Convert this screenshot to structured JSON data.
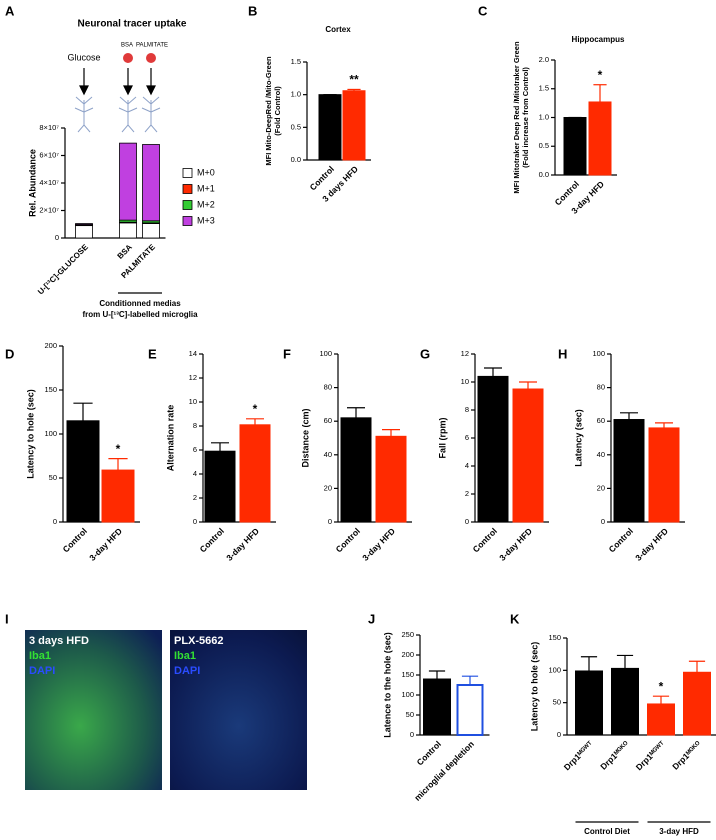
{
  "chart_data": [
    {
      "panel": "A",
      "type": "stacked_bar",
      "title": "Neuronal tracer uptake",
      "y_label": "Rel. Abundance",
      "categories": [
        "U-[¹³C]-GLUCOSE",
        "BSA",
        "PALMITATE"
      ],
      "series": [
        {
          "name": "M+0",
          "color": "#ffffff",
          "values": [
            9000000,
            11000000,
            10500000
          ]
        },
        {
          "name": "M+1",
          "color": "#ff2a00",
          "values": [
            500000,
            500000,
            500000
          ]
        },
        {
          "name": "M+2",
          "color": "#33cc33",
          "values": [
            300000,
            1500000,
            1500000
          ]
        },
        {
          "name": "M+3",
          "color": "#c040e0",
          "values": [
            700000,
            56000000,
            55500000
          ]
        }
      ],
      "ylim": [
        0,
        80000000
      ],
      "yticks": [
        0,
        {
          "value": 20000000,
          "label": "2×10⁷"
        },
        {
          "value": 40000000,
          "label": "4×10⁷"
        },
        {
          "value": 60000000,
          "label": "6×10⁷"
        },
        {
          "value": 80000000,
          "label": "8×10⁷"
        }
      ],
      "legend": "right",
      "annotations": [
        "Glucose",
        "BSA",
        "PALMITATE"
      ],
      "group_label": [
        "Conditionned medias",
        "from U-[¹³C]-labelled microglia"
      ]
    },
    {
      "panel": "B",
      "type": "bar",
      "title": "Cortex",
      "y_label": [
        "MFI Mito-DeepRed /Mito-Green",
        "(Fold Control)"
      ],
      "categories": [
        "Control",
        "3 days HFD"
      ],
      "values": [
        1.0,
        1.06
      ],
      "errors": [
        0,
        0.02
      ],
      "colors": [
        "#000000",
        "#ff2a00"
      ],
      "significance": [
        null,
        "**"
      ],
      "ylim": [
        0,
        1.5
      ],
      "yticks": [
        {
          "value": 0,
          "label": "0.0"
        },
        {
          "value": 0.5,
          "label": "0.5"
        },
        {
          "value": 1,
          "label": "1.0"
        },
        {
          "value": 1.5,
          "label": "1.5"
        }
      ]
    },
    {
      "panel": "C",
      "type": "bar",
      "title": "Hippocampus",
      "y_label": [
        "MFI Mitotraker Deep Red /Mitotraker Green",
        "(Fold increase from Control)"
      ],
      "categories": [
        "Control",
        "3-day HFD"
      ],
      "values": [
        1.0,
        1.27
      ],
      "errors": [
        0,
        0.3
      ],
      "colors": [
        "#000000",
        "#ff2a00"
      ],
      "significance": [
        null,
        "*"
      ],
      "ylim": [
        0,
        2
      ],
      "yticks": [
        {
          "value": 0,
          "label": "0.0"
        },
        {
          "value": 0.5,
          "label": "0.5"
        },
        {
          "value": 1,
          "label": "1.0"
        },
        {
          "value": 1.5,
          "label": "1.5"
        },
        {
          "value": 2,
          "label": "2.0"
        }
      ]
    },
    {
      "panel": "D",
      "type": "bar",
      "y_label": "Latency to hole (sec)",
      "categories": [
        "Control",
        "3-day HFD"
      ],
      "values": [
        115,
        59
      ],
      "errors": [
        20,
        13
      ],
      "colors": [
        "#000000",
        "#ff2a00"
      ],
      "significance": [
        null,
        "*"
      ],
      "ylim": [
        0,
        200
      ],
      "yticks": [
        0,
        50,
        100,
        150,
        200
      ]
    },
    {
      "panel": "E",
      "type": "bar",
      "y_label": "Alternation rate",
      "categories": [
        "Control",
        "3-day HFD"
      ],
      "values": [
        5.9,
        8.1
      ],
      "errors": [
        0.7,
        0.5
      ],
      "colors": [
        "#000000",
        "#ff2a00"
      ],
      "significance": [
        null,
        "*"
      ],
      "ylim": [
        0,
        14
      ],
      "yticks": [
        0,
        2,
        4,
        6,
        8,
        10,
        12,
        14
      ]
    },
    {
      "panel": "F",
      "type": "bar",
      "y_label": "Distance (cm)",
      "categories": [
        "Control",
        "3-day HFD"
      ],
      "values": [
        62,
        51
      ],
      "errors": [
        6,
        4
      ],
      "colors": [
        "#000000",
        "#ff2a00"
      ],
      "ylim": [
        0,
        100
      ],
      "yticks": [
        0,
        20,
        40,
        60,
        80,
        100
      ]
    },
    {
      "panel": "G",
      "type": "bar",
      "y_label": "Fall (rpm)",
      "categories": [
        "Control",
        "3-day HFD"
      ],
      "values": [
        10.4,
        9.5
      ],
      "errors": [
        0.6,
        0.5
      ],
      "colors": [
        "#000000",
        "#ff2a00"
      ],
      "ylim": [
        0,
        12
      ],
      "yticks": [
        0,
        2,
        4,
        6,
        8,
        10,
        12
      ]
    },
    {
      "panel": "H",
      "type": "bar",
      "y_label": "Latency (sec)",
      "categories": [
        "Control",
        "3-day HFD"
      ],
      "values": [
        61,
        56
      ],
      "errors": [
        4,
        3
      ],
      "colors": [
        "#000000",
        "#ff2a00"
      ],
      "ylim": [
        0,
        100
      ],
      "yticks": [
        0,
        20,
        40,
        60,
        80,
        100
      ]
    },
    {
      "panel": "J",
      "type": "bar",
      "y_label": "Latence to the hole (sec)",
      "categories": [
        "Control",
        "microglial depletion"
      ],
      "values": [
        140,
        125
      ],
      "errors": [
        20,
        22
      ],
      "colors": [
        "#000000",
        "#1f4fe0"
      ],
      "hollow": [
        false,
        true
      ],
      "ylim": [
        0,
        250
      ],
      "yticks": [
        0,
        50,
        100,
        150,
        200,
        250
      ]
    },
    {
      "panel": "K",
      "type": "bar",
      "y_label": "Latency to hole (sec)",
      "categories": [
        "Drp1ᴹᴳᵂᵀ",
        "Drp1ᴹᴳᴷᴼ",
        "Drp1ᴹᴳᵂᵀ",
        "Drp1ᴹᴳᴷᴼ"
      ],
      "values": [
        99,
        103,
        48,
        97
      ],
      "errors": [
        22,
        20,
        12,
        17
      ],
      "colors": [
        "#000000",
        "#000000",
        "#ff2a00",
        "#ff2a00"
      ],
      "significance": [
        null,
        null,
        "*",
        null
      ],
      "groups": [
        "Control Diet",
        "3-day HFD"
      ],
      "ylim": [
        0,
        150
      ],
      "yticks": [
        0,
        50,
        100,
        150
      ]
    }
  ],
  "micrographs": {
    "panel": "I",
    "images": [
      {
        "label": "3 days HFD",
        "stains": [
          "Iba1",
          "DAPI"
        ]
      },
      {
        "label": "PLX-5662",
        "stains": [
          "Iba1",
          "DAPI"
        ]
      }
    ]
  }
}
